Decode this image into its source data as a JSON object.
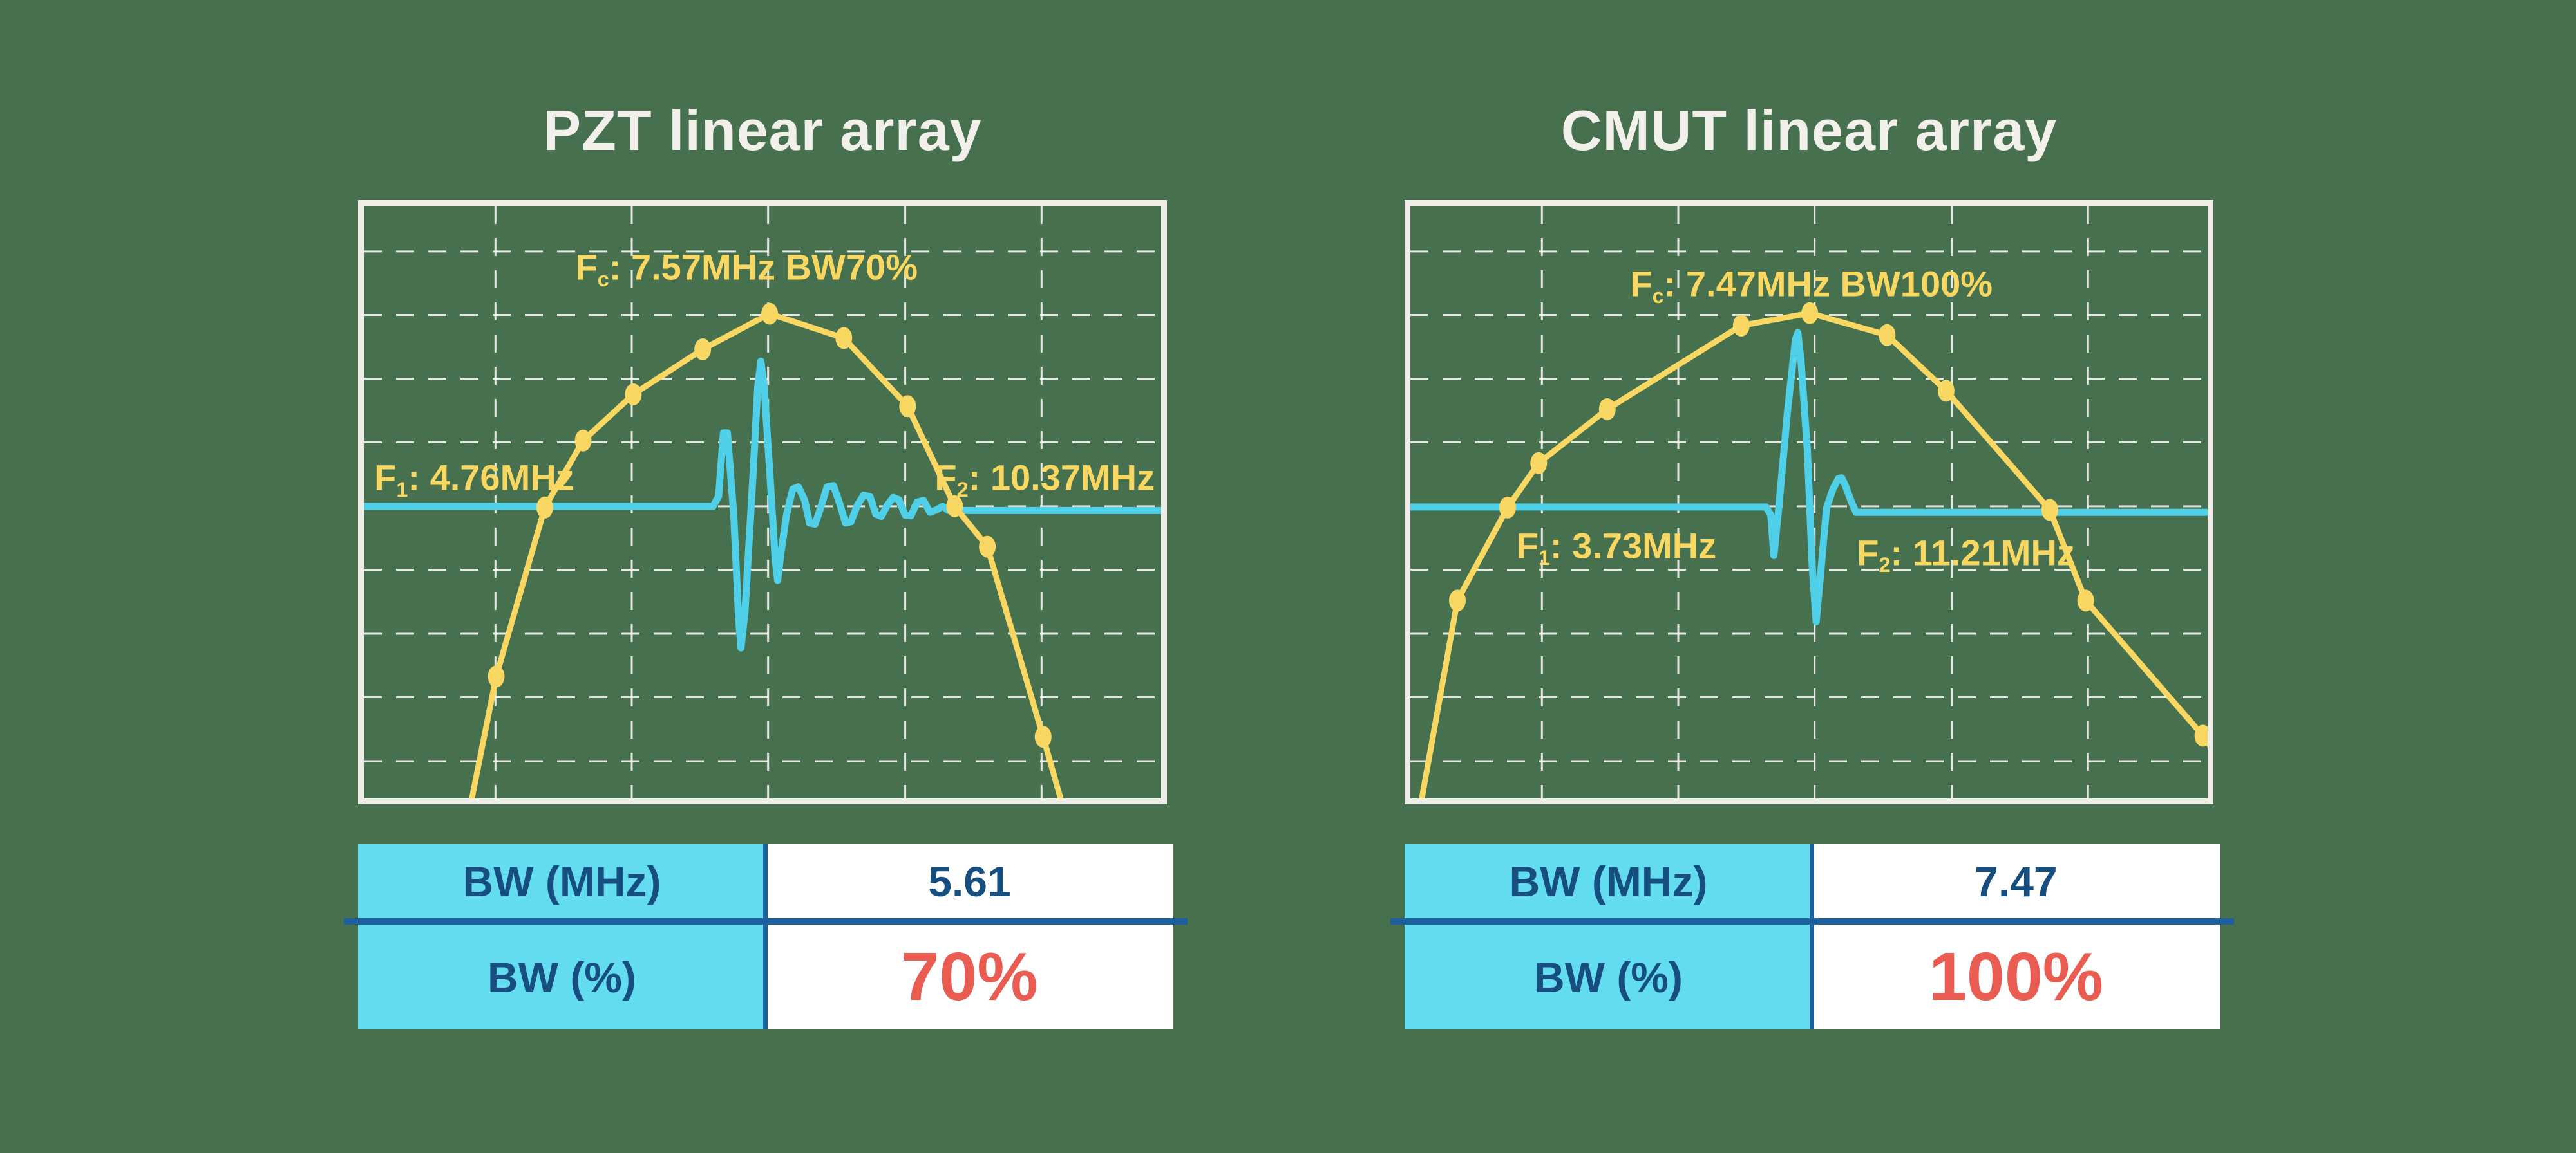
{
  "style": {
    "background": "#46704e",
    "frame_color": "#efede7",
    "grid_color": "#f4f4f0",
    "curve_color": "#f8d862",
    "pulse_color": "#4fd0e8",
    "title_color": "#f2f0ea",
    "table_header_bg": "#63dcef",
    "table_text_navy": "#174e80",
    "table_value_red": "#e85c52",
    "table_divider_blue": "#1e5f9e",
    "grid_x": [
      0.165,
      0.336,
      0.507,
      0.679,
      0.85
    ],
    "grid_y": [
      0.077,
      0.184,
      0.292,
      0.399,
      0.507,
      0.614,
      0.722,
      0.829,
      0.937
    ]
  },
  "chart_data": [
    {
      "type": "line",
      "title": "PZT linear array",
      "fc_mhz": 7.57,
      "f1_mhz": 4.76,
      "f2_mhz": 10.37,
      "bw_mhz": 5.61,
      "bw_percent": 70,
      "labels": {
        "fc": {
          "prefix": "F",
          "sub": "c",
          "text": ": 7.57MHz BW70%"
        },
        "f1": {
          "prefix": "F",
          "sub": "1",
          "text": ": 4.76MHz"
        },
        "f2": {
          "prefix": "F",
          "sub": "2",
          "text": ": 10.37MHz"
        }
      },
      "series": [
        {
          "name": "frequency-response-curve",
          "note": "normalized plot-fraction coords, y down",
          "points": [
            [
              0.134,
              1.01
            ],
            [
              0.166,
              0.794
            ],
            [
              0.227,
              0.509
            ],
            [
              0.275,
              0.396
            ],
            [
              0.338,
              0.318
            ],
            [
              0.425,
              0.242
            ],
            [
              0.509,
              0.182
            ],
            [
              0.602,
              0.223
            ],
            [
              0.682,
              0.338
            ],
            [
              0.741,
              0.507
            ],
            [
              0.782,
              0.575
            ],
            [
              0.852,
              0.896
            ],
            [
              0.876,
              1.01
            ]
          ],
          "markers": [
            [
              0.166,
              0.794
            ],
            [
              0.227,
              0.509
            ],
            [
              0.275,
              0.396
            ],
            [
              0.338,
              0.318
            ],
            [
              0.425,
              0.242
            ],
            [
              0.509,
              0.182
            ],
            [
              0.602,
              0.223
            ],
            [
              0.682,
              0.338
            ],
            [
              0.741,
              0.507
            ],
            [
              0.782,
              0.575
            ],
            [
              0.852,
              0.896
            ]
          ]
        },
        {
          "name": "pulse-echo-waveform",
          "points": [
            [
              0.0,
              0.507
            ],
            [
              0.438,
              0.507
            ],
            [
              0.445,
              0.49
            ],
            [
              0.451,
              0.383
            ],
            [
              0.456,
              0.383
            ],
            [
              0.464,
              0.522
            ],
            [
              0.47,
              0.696
            ],
            [
              0.473,
              0.746
            ],
            [
              0.478,
              0.685
            ],
            [
              0.488,
              0.457
            ],
            [
              0.494,
              0.305
            ],
            [
              0.498,
              0.262
            ],
            [
              0.502,
              0.305
            ],
            [
              0.51,
              0.468
            ],
            [
              0.516,
              0.598
            ],
            [
              0.519,
              0.632
            ],
            [
              0.523,
              0.587
            ],
            [
              0.53,
              0.522
            ],
            [
              0.538,
              0.478
            ],
            [
              0.545,
              0.474
            ],
            [
              0.553,
              0.497
            ],
            [
              0.559,
              0.535
            ],
            [
              0.566,
              0.537
            ],
            [
              0.574,
              0.505
            ],
            [
              0.581,
              0.474
            ],
            [
              0.589,
              0.472
            ],
            [
              0.597,
              0.503
            ],
            [
              0.604,
              0.535
            ],
            [
              0.611,
              0.533
            ],
            [
              0.619,
              0.505
            ],
            [
              0.627,
              0.488
            ],
            [
              0.635,
              0.491
            ],
            [
              0.642,
              0.52
            ],
            [
              0.649,
              0.524
            ],
            [
              0.657,
              0.504
            ],
            [
              0.664,
              0.492
            ],
            [
              0.671,
              0.496
            ],
            [
              0.679,
              0.522
            ],
            [
              0.686,
              0.523
            ],
            [
              0.694,
              0.5
            ],
            [
              0.702,
              0.497
            ],
            [
              0.71,
              0.517
            ],
            [
              0.718,
              0.513
            ],
            [
              0.726,
              0.507
            ],
            [
              0.733,
              0.514
            ],
            [
              1.0,
              0.514
            ]
          ]
        }
      ],
      "table": {
        "rows": [
          {
            "label": "BW (MHz)",
            "value": "5.61"
          },
          {
            "label": "BW (%)",
            "value": "70%"
          }
        ]
      }
    },
    {
      "type": "line",
      "title": "CMUT linear array",
      "fc_mhz": 7.47,
      "f1_mhz": 3.73,
      "f2_mhz": 11.21,
      "bw_mhz": 7.47,
      "bw_percent": 100,
      "labels": {
        "fc": {
          "prefix": "F",
          "sub": "c",
          "text": ": 7.47MHz BW100%"
        },
        "f1": {
          "prefix": "F",
          "sub": "1",
          "text": ": 3.73MHz"
        },
        "f2": {
          "prefix": "F",
          "sub": "2",
          "text": ": 11.21MHz"
        }
      },
      "series": [
        {
          "name": "frequency-response-curve",
          "note": "normalized plot-fraction coords, y down",
          "points": [
            [
              0.013,
              1.01
            ],
            [
              0.059,
              0.666
            ],
            [
              0.122,
              0.509
            ],
            [
              0.161,
              0.434
            ],
            [
              0.247,
              0.343
            ],
            [
              0.415,
              0.202
            ],
            [
              0.501,
              0.181
            ],
            [
              0.598,
              0.218
            ],
            [
              0.672,
              0.312
            ],
            [
              0.802,
              0.513
            ],
            [
              0.847,
              0.666
            ],
            [
              0.994,
              0.894
            ],
            [
              1.005,
              0.915
            ]
          ],
          "markers": [
            [
              0.059,
              0.666
            ],
            [
              0.122,
              0.509
            ],
            [
              0.161,
              0.434
            ],
            [
              0.247,
              0.343
            ],
            [
              0.415,
              0.202
            ],
            [
              0.501,
              0.181
            ],
            [
              0.598,
              0.218
            ],
            [
              0.672,
              0.312
            ],
            [
              0.802,
              0.513
            ],
            [
              0.847,
              0.666
            ],
            [
              0.994,
              0.894
            ]
          ]
        },
        {
          "name": "pulse-echo-waveform",
          "points": [
            [
              0.0,
              0.508
            ],
            [
              0.446,
              0.508
            ],
            [
              0.452,
              0.521
            ],
            [
              0.456,
              0.59
            ],
            [
              0.462,
              0.51
            ],
            [
              0.473,
              0.347
            ],
            [
              0.483,
              0.225
            ],
            [
              0.486,
              0.214
            ],
            [
              0.49,
              0.261
            ],
            [
              0.498,
              0.413
            ],
            [
              0.504,
              0.608
            ],
            [
              0.509,
              0.702
            ],
            [
              0.514,
              0.63
            ],
            [
              0.522,
              0.51
            ],
            [
              0.53,
              0.478
            ],
            [
              0.537,
              0.46
            ],
            [
              0.541,
              0.459
            ],
            [
              0.546,
              0.473
            ],
            [
              0.553,
              0.499
            ],
            [
              0.559,
              0.517
            ],
            [
              1.0,
              0.517
            ]
          ]
        }
      ],
      "table": {
        "rows": [
          {
            "label": "BW (MHz)",
            "value": "7.47"
          },
          {
            "label": "BW (%)",
            "value": "100%"
          }
        ]
      }
    }
  ]
}
